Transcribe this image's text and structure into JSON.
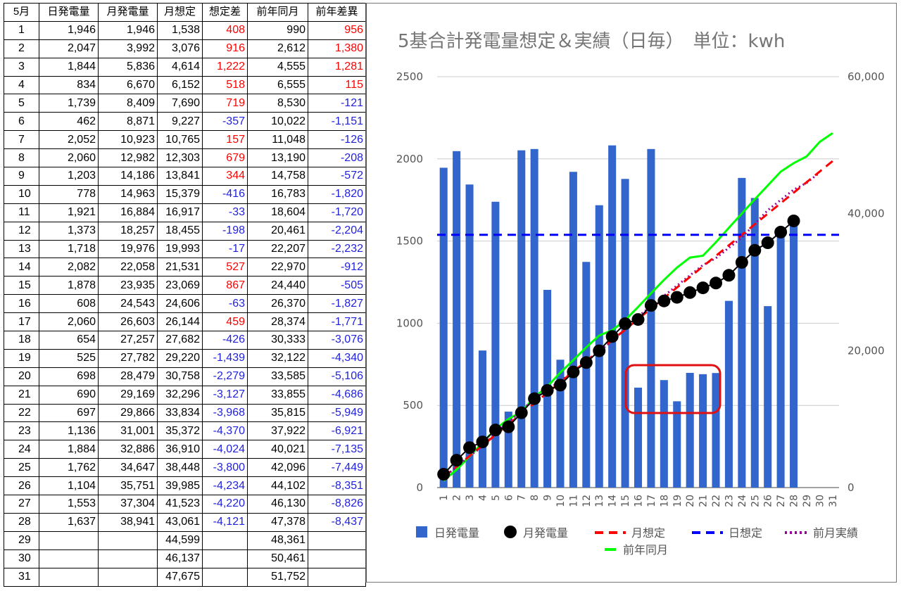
{
  "table": {
    "headers": [
      "5月",
      "日発電量",
      "月発電量",
      "月想定",
      "想定差",
      "前年同月",
      "前年差異"
    ],
    "rows": [
      [
        "1",
        "1,946",
        "1,946",
        "1,538",
        "408",
        "990",
        "956"
      ],
      [
        "2",
        "2,047",
        "3,992",
        "3,076",
        "916",
        "2,612",
        "1,380"
      ],
      [
        "3",
        "1,844",
        "5,836",
        "4,614",
        "1,222",
        "4,555",
        "1,281"
      ],
      [
        "4",
        "834",
        "6,670",
        "6,152",
        "518",
        "6,555",
        "115"
      ],
      [
        "5",
        "1,739",
        "8,409",
        "7,690",
        "719",
        "8,530",
        "-121"
      ],
      [
        "6",
        "462",
        "8,871",
        "9,227",
        "-357",
        "10,022",
        "-1,151"
      ],
      [
        "7",
        "2,052",
        "10,923",
        "10,765",
        "157",
        "11,048",
        "-126"
      ],
      [
        "8",
        "2,060",
        "12,982",
        "12,303",
        "679",
        "13,190",
        "-208"
      ],
      [
        "9",
        "1,203",
        "14,186",
        "13,841",
        "344",
        "14,758",
        "-572"
      ],
      [
        "10",
        "778",
        "14,963",
        "15,379",
        "-416",
        "16,783",
        "-1,820"
      ],
      [
        "11",
        "1,921",
        "16,884",
        "16,917",
        "-33",
        "18,604",
        "-1,720"
      ],
      [
        "12",
        "1,373",
        "18,257",
        "18,455",
        "-198",
        "20,461",
        "-2,204"
      ],
      [
        "13",
        "1,718",
        "19,976",
        "19,993",
        "-17",
        "22,207",
        "-2,232"
      ],
      [
        "14",
        "2,082",
        "22,058",
        "21,531",
        "527",
        "22,970",
        "-912"
      ],
      [
        "15",
        "1,878",
        "23,935",
        "23,069",
        "867",
        "24,440",
        "-505"
      ],
      [
        "16",
        "608",
        "24,543",
        "24,606",
        "-63",
        "26,370",
        "-1,827"
      ],
      [
        "17",
        "2,060",
        "26,603",
        "26,144",
        "459",
        "28,374",
        "-1,771"
      ],
      [
        "18",
        "654",
        "27,257",
        "27,682",
        "-426",
        "30,333",
        "-3,076"
      ],
      [
        "19",
        "525",
        "27,782",
        "29,220",
        "-1,439",
        "32,122",
        "-4,340"
      ],
      [
        "20",
        "698",
        "28,479",
        "30,758",
        "-2,279",
        "33,585",
        "-5,106"
      ],
      [
        "21",
        "690",
        "29,169",
        "32,296",
        "-3,127",
        "33,855",
        "-4,686"
      ],
      [
        "22",
        "697",
        "29,866",
        "33,834",
        "-3,968",
        "35,815",
        "-5,949"
      ],
      [
        "23",
        "1,136",
        "31,001",
        "35,372",
        "-4,370",
        "37,922",
        "-6,921"
      ],
      [
        "24",
        "1,884",
        "32,886",
        "36,910",
        "-4,024",
        "40,021",
        "-7,135"
      ],
      [
        "25",
        "1,762",
        "34,647",
        "38,448",
        "-3,800",
        "42,096",
        "-7,449"
      ],
      [
        "26",
        "1,104",
        "35,751",
        "39,985",
        "-4,234",
        "44,102",
        "-8,351"
      ],
      [
        "27",
        "1,553",
        "37,304",
        "41,523",
        "-4,220",
        "46,130",
        "-8,826"
      ],
      [
        "28",
        "1,637",
        "38,941",
        "43,061",
        "-4,121",
        "47,378",
        "-8,437"
      ],
      [
        "29",
        "",
        "",
        "44,599",
        "",
        "48,361",
        ""
      ],
      [
        "30",
        "",
        "",
        "46,137",
        "",
        "50,461",
        ""
      ],
      [
        "31",
        "",
        "",
        "47,675",
        "",
        "51,752",
        ""
      ]
    ]
  },
  "colors": {
    "positive": "#ff0000",
    "negative": "#1f1fe0",
    "bar": "#3366cc",
    "monthly_actual": "#000000",
    "monthly_target": "#ff0000",
    "daily_target": "#0000ff",
    "prev_month": "#990099",
    "prev_year": "#00ff00",
    "highlight_box": "#e01010",
    "gridline": "#cccccc"
  },
  "chart_data": {
    "type": "bar",
    "title": "5基合計発電量想定＆実績（日毎）　単位：kwh",
    "categories": [
      "1",
      "2",
      "3",
      "4",
      "5",
      "6",
      "7",
      "8",
      "9",
      "10",
      "11",
      "12",
      "13",
      "14",
      "15",
      "16",
      "17",
      "18",
      "19",
      "20",
      "21",
      "22",
      "23",
      "24",
      "25",
      "26",
      "27",
      "28",
      "29",
      "30",
      "31"
    ],
    "y_left": {
      "ticks": [
        "0",
        "500",
        "1000",
        "1500",
        "2000",
        "2500"
      ],
      "ylim": [
        0,
        2500
      ]
    },
    "y_right": {
      "ticks": [
        "0",
        "20,000",
        "40,000",
        "60,000"
      ],
      "ylim": [
        0,
        60000
      ]
    },
    "grid": true,
    "legend_position": "bottom",
    "series": [
      {
        "name": "日発電量",
        "type": "bar",
        "axis": "left",
        "values": [
          1946,
          2047,
          1844,
          834,
          1739,
          462,
          2052,
          2060,
          1203,
          778,
          1921,
          1373,
          1718,
          2082,
          1878,
          608,
          2060,
          654,
          525,
          698,
          690,
          697,
          1136,
          1884,
          1762,
          1104,
          1553,
          1637,
          null,
          null,
          null
        ]
      },
      {
        "name": "月発電量",
        "type": "line-marker",
        "axis": "right",
        "values": [
          1946,
          3992,
          5836,
          6670,
          8409,
          8871,
          10923,
          12982,
          14186,
          14963,
          16884,
          18257,
          19976,
          22058,
          23935,
          24543,
          26603,
          27257,
          27782,
          28479,
          29169,
          29866,
          31001,
          32886,
          34647,
          35751,
          37304,
          38941,
          null,
          null,
          null
        ]
      },
      {
        "name": "月想定",
        "type": "dashed-line",
        "axis": "right",
        "values": [
          1538,
          3076,
          4614,
          6152,
          7690,
          9227,
          10765,
          12303,
          13841,
          15379,
          16917,
          18455,
          19993,
          21531,
          23069,
          24606,
          26144,
          27682,
          29220,
          30758,
          32296,
          33834,
          35372,
          36910,
          38448,
          39985,
          41523,
          43061,
          44599,
          46137,
          47675
        ]
      },
      {
        "name": "日想定",
        "type": "dashed-line",
        "axis": "left",
        "values": [
          1538,
          1538,
          1538,
          1538,
          1538,
          1538,
          1538,
          1538,
          1538,
          1538,
          1538,
          1538,
          1538,
          1538,
          1538,
          1538,
          1538,
          1538,
          1538,
          1538,
          1538,
          1538,
          1538,
          1538,
          1538,
          1538,
          1538,
          1538,
          1538,
          1538,
          1538
        ]
      },
      {
        "name": "前月実績",
        "type": "dotted-line",
        "axis": "right",
        "values": [
          1500,
          3000,
          4600,
          6000,
          8000,
          9500,
          11200,
          13000,
          14300,
          15500,
          17000,
          18400,
          19900,
          21400,
          23100,
          25000,
          26500,
          28000,
          29500,
          31000,
          32500,
          33500,
          35000,
          36500,
          38500,
          40500,
          42000,
          43500,
          44500,
          46000,
          null
        ]
      },
      {
        "name": "前年同月",
        "type": "line",
        "axis": "right",
        "values": [
          990,
          2612,
          4555,
          6555,
          8530,
          10022,
          11048,
          13190,
          14758,
          16783,
          18604,
          20461,
          22207,
          22970,
          24440,
          26370,
          28374,
          30333,
          32122,
          33585,
          33855,
          35815,
          37922,
          40021,
          42096,
          44102,
          46130,
          47378,
          48361,
          50461,
          51752
        ]
      }
    ]
  }
}
